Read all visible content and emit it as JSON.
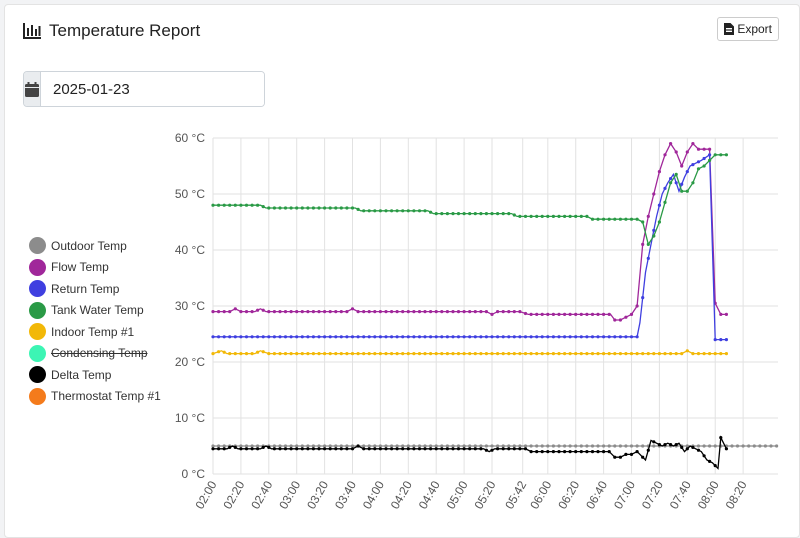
{
  "header": {
    "title": "Temperature Report",
    "icon": "bar-chart-icon"
  },
  "export": {
    "label": "Export",
    "icon": "file-export-icon"
  },
  "date_filter": {
    "value": "2025-01-23",
    "icon": "calendar-icon"
  },
  "chart_data": {
    "type": "line",
    "y_unit": "°C",
    "ylim": [
      0,
      60
    ],
    "y_ticks": [
      "0 °C",
      "10 °C",
      "20 °C",
      "30 °C",
      "40 °C",
      "50 °C",
      "60 °C"
    ],
    "x_ticks": [
      "02:00",
      "02:20",
      "02:40",
      "03:00",
      "03:20",
      "03:40",
      "04:00",
      "04:20",
      "04:40",
      "05:00",
      "05:20",
      "05:42",
      "06:00",
      "06:20",
      "06:40",
      "07:00",
      "07:20",
      "07:40",
      "08:00",
      "08:20"
    ],
    "grid": true,
    "legend_position": "left",
    "series": [
      {
        "name": "Outdoor Temp",
        "color": "#8c8c8c",
        "hidden": false,
        "points": [
          [
            "02:00",
            5
          ],
          [
            "08:45",
            5
          ]
        ]
      },
      {
        "name": "Flow Temp",
        "color": "#a0279a",
        "hidden": false,
        "points": [
          [
            "02:00",
            29
          ],
          [
            "02:12",
            29
          ],
          [
            "02:16",
            29.5
          ],
          [
            "02:20",
            29
          ],
          [
            "02:30",
            29
          ],
          [
            "02:34",
            29.5
          ],
          [
            "02:38",
            29
          ],
          [
            "03:36",
            29
          ],
          [
            "03:40",
            29.5
          ],
          [
            "03:44",
            29
          ],
          [
            "05:16",
            29
          ],
          [
            "05:20",
            28.5
          ],
          [
            "05:24",
            29
          ],
          [
            "05:40",
            29
          ],
          [
            "05:46",
            28.5
          ],
          [
            "06:45",
            28.5
          ],
          [
            "06:48",
            27.5
          ],
          [
            "06:52",
            27.5
          ],
          [
            "06:56",
            28
          ],
          [
            "07:00",
            28.5
          ],
          [
            "07:04",
            30
          ],
          [
            "07:08",
            41
          ],
          [
            "07:12",
            46
          ],
          [
            "07:16",
            50
          ],
          [
            "07:20",
            54
          ],
          [
            "07:24",
            57
          ],
          [
            "07:28",
            59
          ],
          [
            "07:32",
            57.5
          ],
          [
            "07:36",
            55
          ],
          [
            "07:40",
            57.5
          ],
          [
            "07:44",
            59
          ],
          [
            "07:48",
            58
          ],
          [
            "07:52",
            58
          ],
          [
            "07:56",
            58
          ],
          [
            "08:00",
            30.5
          ],
          [
            "08:04",
            28.5
          ],
          [
            "08:08",
            28.5
          ]
        ]
      },
      {
        "name": "Return Temp",
        "color": "#3f3fe0",
        "hidden": false,
        "points": [
          [
            "02:00",
            24.5
          ],
          [
            "07:04",
            24.5
          ],
          [
            "07:06",
            27
          ],
          [
            "07:10",
            36
          ],
          [
            "07:14",
            41
          ],
          [
            "07:18",
            46
          ],
          [
            "07:22",
            50
          ],
          [
            "07:26",
            52
          ],
          [
            "07:30",
            53.5
          ],
          [
            "07:34",
            50.5
          ],
          [
            "07:38",
            53
          ],
          [
            "07:42",
            55
          ],
          [
            "07:46",
            55.5
          ],
          [
            "07:50",
            56
          ],
          [
            "07:56",
            57
          ],
          [
            "08:00",
            24
          ],
          [
            "08:08",
            24
          ]
        ]
      },
      {
        "name": "Tank Water Temp",
        "color": "#2a9a46",
        "hidden": false,
        "points": [
          [
            "02:00",
            48
          ],
          [
            "02:34",
            48
          ],
          [
            "02:38",
            47.5
          ],
          [
            "03:42",
            47.5
          ],
          [
            "03:46",
            47
          ],
          [
            "04:34",
            47
          ],
          [
            "04:38",
            46.5
          ],
          [
            "05:34",
            46.5
          ],
          [
            "05:38",
            46
          ],
          [
            "06:28",
            46
          ],
          [
            "06:32",
            45.5
          ],
          [
            "07:04",
            45.5
          ],
          [
            "07:08",
            45
          ],
          [
            "07:12",
            41
          ],
          [
            "07:16",
            42.5
          ],
          [
            "07:20",
            45
          ],
          [
            "07:24",
            48.5
          ],
          [
            "07:28",
            52
          ],
          [
            "07:32",
            53.5
          ],
          [
            "07:36",
            50.5
          ],
          [
            "07:40",
            50.5
          ],
          [
            "07:44",
            52
          ],
          [
            "07:48",
            54.5
          ],
          [
            "07:52",
            55
          ],
          [
            "07:56",
            56
          ],
          [
            "08:00",
            57
          ],
          [
            "08:08",
            57
          ]
        ]
      },
      {
        "name": "Indoor Temp #1",
        "color": "#f2b807",
        "hidden": false,
        "points": [
          [
            "02:00",
            21.5
          ],
          [
            "02:06",
            22
          ],
          [
            "02:10",
            21.5
          ],
          [
            "02:30",
            21.5
          ],
          [
            "02:34",
            22
          ],
          [
            "02:40",
            21.5
          ],
          [
            "07:36",
            21.5
          ],
          [
            "07:40",
            22
          ],
          [
            "07:44",
            21.5
          ],
          [
            "08:08",
            21.5
          ]
        ]
      },
      {
        "name": "Condensing Temp",
        "color": "#3cf5b4",
        "hidden": true,
        "points": []
      },
      {
        "name": "Delta Temp",
        "color": "#000000",
        "hidden": false,
        "points": [
          [
            "02:00",
            4.5
          ],
          [
            "02:10",
            4.5
          ],
          [
            "02:14",
            5
          ],
          [
            "02:18",
            4.5
          ],
          [
            "02:34",
            4.5
          ],
          [
            "02:38",
            5
          ],
          [
            "02:42",
            4.5
          ],
          [
            "03:40",
            4.5
          ],
          [
            "03:44",
            5
          ],
          [
            "03:48",
            4.5
          ],
          [
            "05:14",
            4.5
          ],
          [
            "05:18",
            4
          ],
          [
            "05:22",
            4.5
          ],
          [
            "05:44",
            4.5
          ],
          [
            "05:48",
            4
          ],
          [
            "06:44",
            4
          ],
          [
            "06:48",
            3
          ],
          [
            "06:52",
            3
          ],
          [
            "06:56",
            3.5
          ],
          [
            "07:00",
            3.5
          ],
          [
            "07:04",
            4
          ],
          [
            "07:08",
            3
          ],
          [
            "07:10",
            2.5
          ],
          [
            "07:14",
            6
          ],
          [
            "07:18",
            5.5
          ],
          [
            "07:22",
            5
          ],
          [
            "07:26",
            5.5
          ],
          [
            "07:30",
            5
          ],
          [
            "07:34",
            5.5
          ],
          [
            "07:38",
            4
          ],
          [
            "07:42",
            5
          ],
          [
            "07:46",
            4.5
          ],
          [
            "07:50",
            4
          ],
          [
            "07:54",
            2.5
          ],
          [
            "07:58",
            2
          ],
          [
            "08:02",
            1
          ],
          [
            "08:04",
            6.5
          ],
          [
            "08:08",
            4.5
          ]
        ]
      },
      {
        "name": "Thermostat Temp #1",
        "color": "#f47b1c",
        "hidden": false,
        "points": []
      }
    ]
  }
}
